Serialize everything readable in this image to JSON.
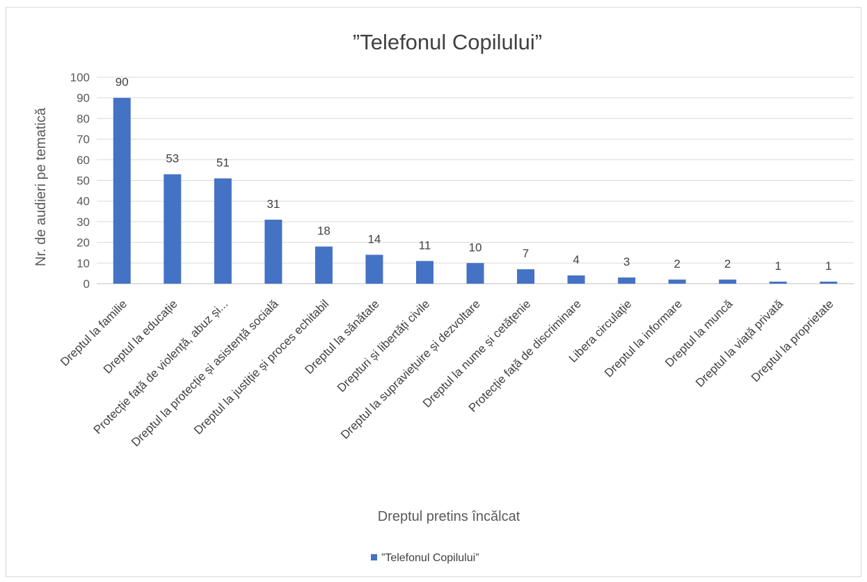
{
  "chart_data": {
    "type": "bar",
    "title": "”Telefonul Copilului”",
    "xlabel": "Dreptul pretins încălcat",
    "ylabel": "Nr. de audieri pe tematică",
    "ylim": [
      0,
      100
    ],
    "yticks": [
      0,
      10,
      20,
      30,
      40,
      50,
      60,
      70,
      80,
      90,
      100
    ],
    "grid": true,
    "legend_position": "bottom",
    "bar_color": "#4472c4",
    "categories": [
      "Dreptul la familie",
      "Dreptul la educație",
      "Protecție față de violență, abuz și...",
      "Dreptul la protecție și asistență socială",
      "Dreptul la justiție și proces echitabil",
      "Dreptul la sănătate",
      "Drepturi și libertăți civile",
      "Dreptul la supraviețuire și dezvoltare",
      "Dreptul la nume și cetățenie",
      "Protecție față de discriminare",
      "Libera circulație",
      "Dreptul la informare",
      "Dreptul la muncă",
      "Dreptul la viață privată",
      "Dreptul la proprietate"
    ],
    "series": [
      {
        "name": "”Telefonul Copilului”",
        "values": [
          90,
          53,
          51,
          31,
          18,
          14,
          11,
          10,
          7,
          4,
          3,
          2,
          2,
          1,
          1
        ]
      }
    ]
  }
}
